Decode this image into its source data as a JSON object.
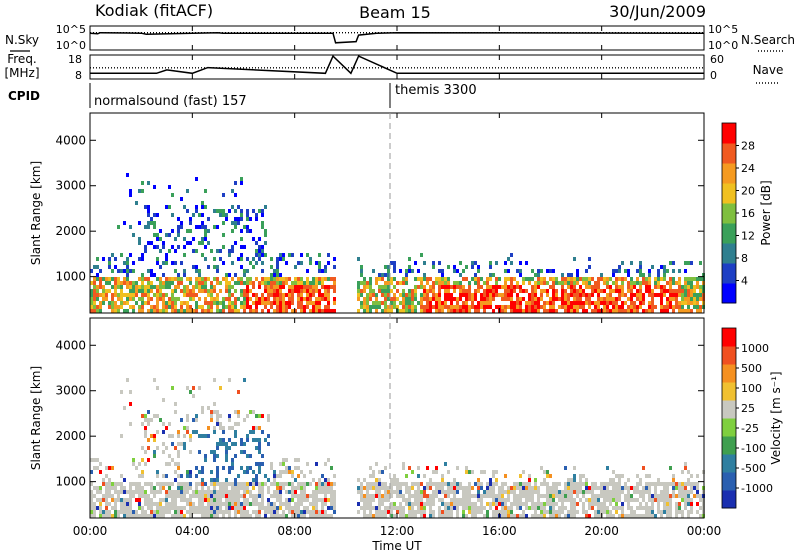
{
  "header": {
    "station": "Kodiak (fitACF)",
    "beam": "Beam 15",
    "date": "30/Jun/2009"
  },
  "colors": {
    "power_scale": [
      "#0000ff",
      "#1e3fc4",
      "#2f7f8f",
      "#3aa05a",
      "#7fbf3f",
      "#f0c020",
      "#f59a20",
      "#f05a20",
      "#ff0000"
    ],
    "velocity_scale": [
      "#1a2fb0",
      "#2a5fb0",
      "#2f7fa0",
      "#3f9f4f",
      "#7fcf3f",
      "#c8c8c0",
      "#f0c030",
      "#f59020",
      "#f05020",
      "#ff0000"
    ],
    "cpid_divider": "#808080"
  },
  "chart_data": [
    {
      "type": "line",
      "name": "panel-nsky-nsearch",
      "left_label": "N.Sky",
      "right_label": "N.Search",
      "left_ticks": [
        "10^5",
        "10^0"
      ],
      "right_ticks": [
        "10^5",
        "10^0"
      ],
      "series": [
        {
          "name": "N.Sky",
          "style": "solid",
          "x_hours": [
            0,
            0.3,
            0.4,
            2,
            2.2,
            4,
            5,
            5.2,
            9.5,
            9.6,
            10.4,
            10.5,
            11.2,
            12,
            24
          ],
          "y": [
            0.7,
            0.68,
            0.72,
            0.7,
            0.66,
            0.7,
            0.72,
            0.7,
            0.7,
            0.3,
            0.35,
            0.62,
            0.7,
            0.72,
            0.7
          ]
        },
        {
          "name": "N.Search",
          "style": "dotted",
          "x_hours": [
            0,
            24
          ],
          "y": [
            0.72,
            0.72
          ]
        }
      ]
    },
    {
      "type": "line",
      "name": "panel-freq-nave",
      "left_label": "Freq. [MHz]",
      "right_label": "Nave",
      "left_ticks": [
        "18",
        "8"
      ],
      "right_ticks": [
        "60",
        "0"
      ],
      "series": [
        {
          "name": "Freq",
          "style": "solid",
          "x_hours": [
            0,
            2.6,
            3.0,
            4.0,
            4.6,
            9.2,
            9.5,
            10.2,
            10.5,
            12.0,
            24
          ],
          "y": [
            10.5,
            10.5,
            12,
            10.5,
            13,
            10.5,
            18,
            10.5,
            18,
            10.5,
            10.5
          ]
        },
        {
          "name": "Nave",
          "style": "dotted",
          "x_hours": [
            0,
            24
          ],
          "y": [
            28,
            28
          ]
        }
      ]
    },
    {
      "type": "table",
      "name": "cpid",
      "label": "CPID",
      "entries": [
        {
          "start_hour": 0,
          "text": "normalsound (fast) 157"
        },
        {
          "start_hour": 12,
          "text": "themis 3300"
        }
      ]
    },
    {
      "type": "heatmap",
      "name": "power-rti",
      "x_range_hours": [
        0,
        24
      ],
      "ylabel": "Slant Range [km]",
      "ylim": [
        200,
        4600
      ],
      "yticks": [
        1000,
        2000,
        3000,
        4000
      ],
      "colorbar_label": "Power [dB]",
      "colorbar_ticks": [
        4,
        8,
        12,
        16,
        20,
        24,
        28
      ],
      "colorbar_range": [
        0,
        32
      ],
      "data_gap_hours": [
        9.6,
        10.4
      ]
    },
    {
      "type": "heatmap",
      "name": "velocity-rti",
      "x_range_hours": [
        0,
        24
      ],
      "ylabel": "Slant Range [km]",
      "ylim": [
        200,
        4600
      ],
      "yticks": [
        1000,
        2000,
        3000,
        4000
      ],
      "colorbar_label": "Velocity [m s⁻¹]",
      "colorbar_ticks": [
        1000,
        500,
        100,
        25,
        -25,
        -100,
        -500,
        -1000
      ],
      "data_gap_hours": [
        9.6,
        10.4
      ]
    }
  ],
  "x_axis": {
    "label": "Time UT",
    "ticks": [
      "00:00",
      "04:00",
      "08:00",
      "12:00",
      "16:00",
      "20:00",
      "00:00"
    ]
  }
}
